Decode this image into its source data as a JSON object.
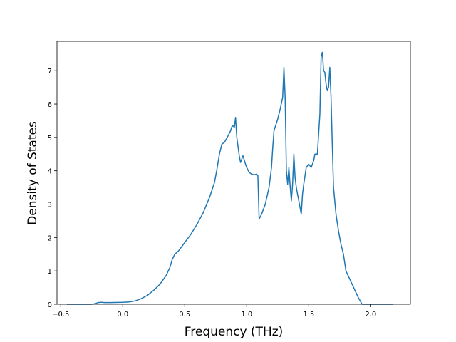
{
  "chart_data": {
    "type": "line",
    "title": "",
    "xlabel": "Frequency (THz)",
    "ylabel": "Density of States",
    "xlim": [
      -0.53,
      2.32
    ],
    "ylim": [
      0,
      7.88
    ],
    "grid": false,
    "xticks": [
      -0.5,
      0.0,
      0.5,
      1.0,
      1.5,
      2.0
    ],
    "xtick_labels": [
      "−0.5",
      "0.0",
      "0.5",
      "1.0",
      "1.5",
      "2.0"
    ],
    "yticks": [
      0,
      1,
      2,
      3,
      4,
      5,
      6,
      7
    ],
    "ytick_labels": [
      "0",
      "1",
      "2",
      "3",
      "4",
      "5",
      "6",
      "7"
    ],
    "color": "#1f77b4",
    "series": [
      {
        "x": [
          -0.45,
          -0.25,
          -0.22,
          -0.2,
          -0.17,
          -0.15,
          -0.1,
          0.0,
          0.05,
          0.1,
          0.15,
          0.2,
          0.25,
          0.3,
          0.35,
          0.38,
          0.4,
          0.42,
          0.45,
          0.5,
          0.55,
          0.6,
          0.65,
          0.7,
          0.74,
          0.76,
          0.78,
          0.8,
          0.82,
          0.85,
          0.87,
          0.88,
          0.89,
          0.9,
          0.91,
          0.92,
          0.94,
          0.95,
          0.97,
          0.99,
          1.0,
          1.02,
          1.04,
          1.06,
          1.08,
          1.09,
          1.1,
          1.12,
          1.15,
          1.18,
          1.2,
          1.21,
          1.22,
          1.25,
          1.27,
          1.29,
          1.3,
          1.31,
          1.32,
          1.33,
          1.34,
          1.35,
          1.36,
          1.37,
          1.38,
          1.39,
          1.4,
          1.42,
          1.44,
          1.45,
          1.46,
          1.48,
          1.5,
          1.52,
          1.54,
          1.55,
          1.57,
          1.59,
          1.6,
          1.61,
          1.62,
          1.63,
          1.64,
          1.65,
          1.66,
          1.67,
          1.68,
          1.69,
          1.7,
          1.72,
          1.74,
          1.76,
          1.78,
          1.8,
          1.85,
          1.9,
          1.93,
          1.95,
          1.97,
          2.0,
          2.05,
          2.1,
          2.18
        ],
        "y": [
          0,
          0,
          0.02,
          0.05,
          0.06,
          0.05,
          0.05,
          0.06,
          0.07,
          0.1,
          0.17,
          0.27,
          0.42,
          0.6,
          0.86,
          1.1,
          1.35,
          1.5,
          1.6,
          1.85,
          2.1,
          2.4,
          2.75,
          3.2,
          3.65,
          4.05,
          4.5,
          4.8,
          4.85,
          5.05,
          5.2,
          5.32,
          5.35,
          5.3,
          5.6,
          5.0,
          4.45,
          4.25,
          4.45,
          4.2,
          4.1,
          3.95,
          3.9,
          3.88,
          3.9,
          3.85,
          2.55,
          2.7,
          3.0,
          3.5,
          4.1,
          4.7,
          5.2,
          5.55,
          5.85,
          6.2,
          7.1,
          6.2,
          4.0,
          3.6,
          4.1,
          3.55,
          3.1,
          3.6,
          4.5,
          3.8,
          3.5,
          3.1,
          2.7,
          3.3,
          3.6,
          4.1,
          4.2,
          4.1,
          4.3,
          4.5,
          4.5,
          5.7,
          7.4,
          7.55,
          7.0,
          6.95,
          6.6,
          6.4,
          6.5,
          7.1,
          6.2,
          4.8,
          3.5,
          2.7,
          2.2,
          1.8,
          1.5,
          1.0,
          0.6,
          0.2,
          0.0,
          0.0,
          0.0,
          0.0,
          0.0,
          0.0,
          0.0
        ]
      }
    ]
  }
}
